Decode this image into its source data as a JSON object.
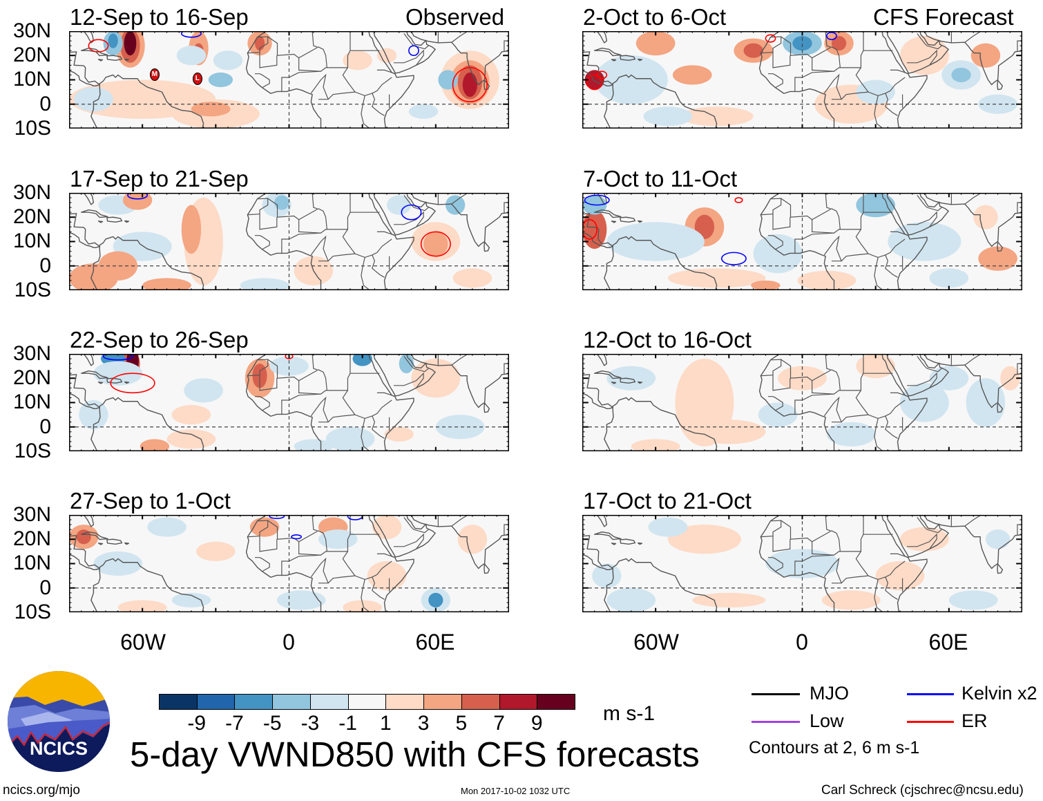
{
  "figure_title": "5-day VWND850 with CFS forecasts",
  "column_headers": {
    "left": "Observed",
    "right": "CFS Forecast"
  },
  "left_panels": [
    {
      "title": "12-Sep to 16-Sep"
    },
    {
      "title": "17-Sep to 21-Sep"
    },
    {
      "title": "22-Sep to 26-Sep"
    },
    {
      "title": "27-Sep to 1-Oct"
    }
  ],
  "right_panels": [
    {
      "title": "2-Oct to 6-Oct"
    },
    {
      "title": "7-Oct to 11-Oct"
    },
    {
      "title": "12-Oct to 16-Oct"
    },
    {
      "title": "17-Oct to 21-Oct"
    }
  ],
  "lat_labels": [
    "30N",
    "20N",
    "10N",
    "0",
    "10S"
  ],
  "lon_labels": [
    "60W",
    "0",
    "60E"
  ],
  "storm_markers": [
    "M",
    "L"
  ],
  "colorbar": {
    "colors": [
      "#0b3466",
      "#2166ac",
      "#4393c3",
      "#92c5de",
      "#d1e5f0",
      "#f7f7f7",
      "#fddbc7",
      "#f4a582",
      "#d6604d",
      "#b2182b",
      "#67001f"
    ],
    "labels": [
      "-9",
      "-7",
      "-5",
      "-3",
      "-1",
      "1",
      "3",
      "5",
      "7",
      "9"
    ],
    "units": "m s-1"
  },
  "legend": {
    "items": [
      {
        "label": "MJO",
        "color": "#000000"
      },
      {
        "label": "Kelvin x2",
        "color": "#0000ff"
      },
      {
        "label": "Low",
        "color": "#a040e0"
      },
      {
        "label": "ER",
        "color": "#ff0000"
      }
    ],
    "contour_note": "Contours at 2, 6 m s-1"
  },
  "logo_text": "NCICS",
  "footer": {
    "url": "ncics.org/mjo",
    "timestamp": "Mon 2017-10-02 1032 UTC",
    "author": "Carl Schreck (cjschrec@ncsu.edu)"
  }
}
